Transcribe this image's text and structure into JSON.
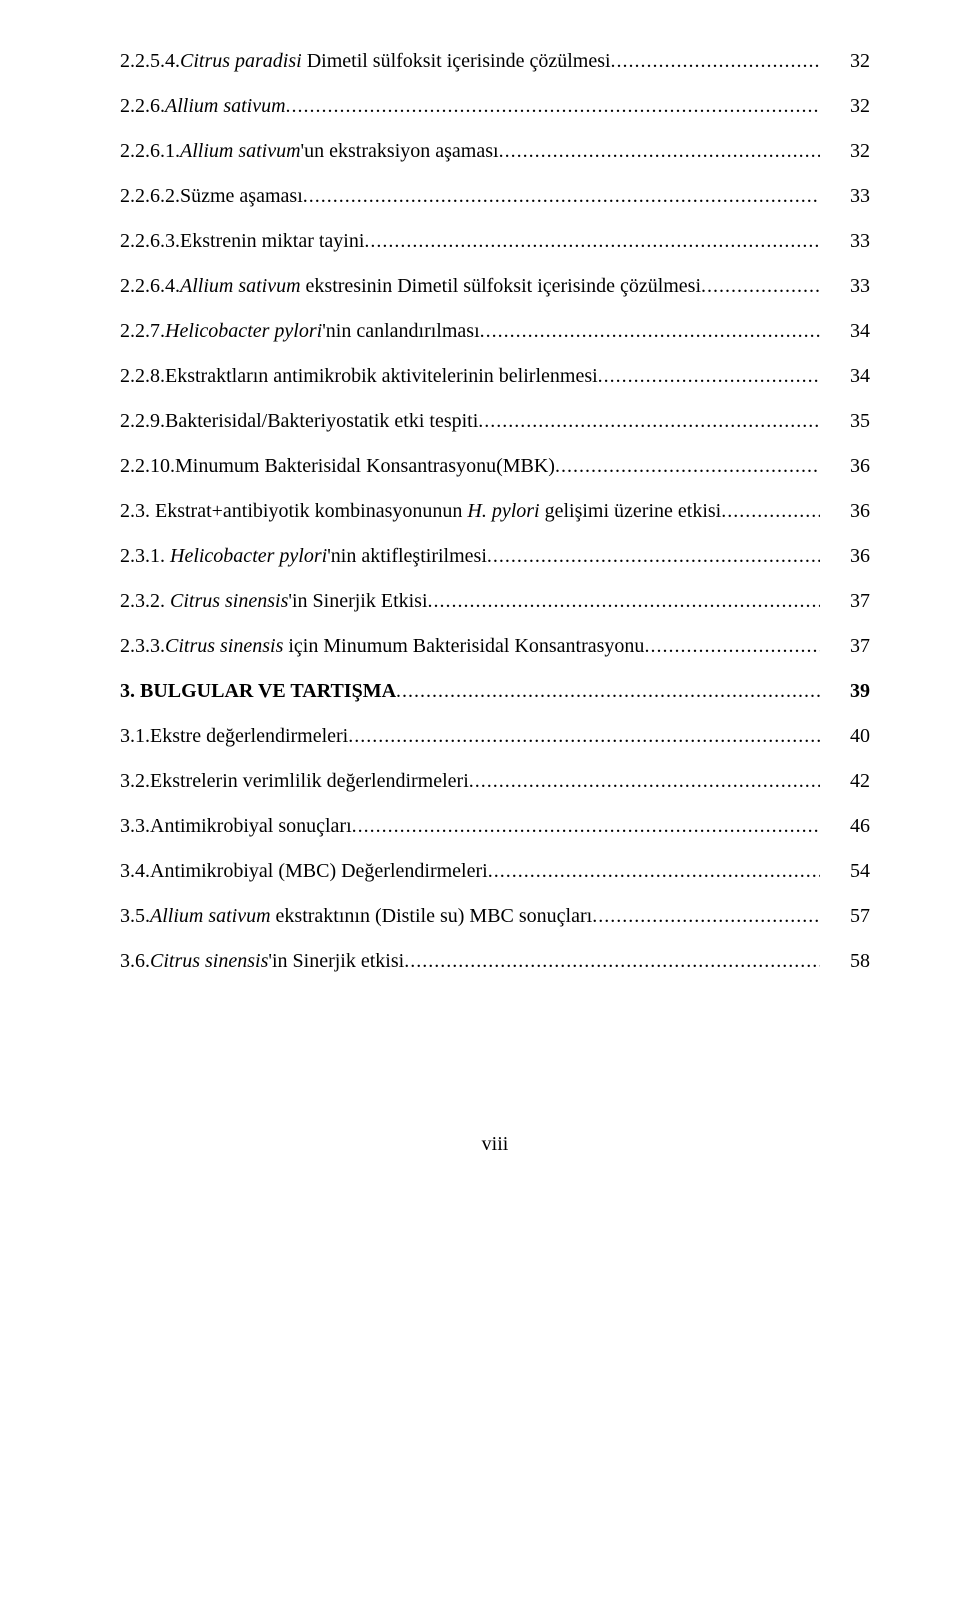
{
  "toc": [
    {
      "num": "2.2.5.4.",
      "pre_i": "Citrus paradisi",
      "post": " Dimetil sülfoksit içerisinde çözülmesi",
      "page": "32"
    },
    {
      "num": "2.2.6.",
      "pre_i": "Allium sativum",
      "post": "",
      "page": "32"
    },
    {
      "num": "2.2.6.1.",
      "pre_i": "Allium sativum",
      "post": "'un ekstraksiyon aşaması",
      "page": "32"
    },
    {
      "num": "2.2.6.2.",
      "pre_i": "",
      "post": "Süzme aşaması",
      "page": "33"
    },
    {
      "num": "2.2.6.3.",
      "pre_i": "",
      "post": "Ekstrenin miktar tayini",
      "page": "33"
    },
    {
      "num": "2.2.6.4.",
      "pre_i": "Allium sativum",
      "post": " ekstresinin Dimetil sülfoksit  içerisinde çözülmesi",
      "page": "33"
    },
    {
      "num": "2.2.7.",
      "pre_i": "Helicobacter pylori",
      "post": "'nin canlandırılması",
      "page": "34"
    },
    {
      "num": "2.2.8.",
      "pre_i": "",
      "post": "Ekstraktların antimikrobik aktivitelerinin belirlenmesi",
      "page": "34"
    },
    {
      "num": "2.2.9.",
      "pre_i": "",
      "post": "Bakterisidal/Bakteriyostatik etki tespiti",
      "page": "35"
    },
    {
      "num": "2.2.10.",
      "pre_i": "",
      "post": "Minumum Bakterisidal Konsantrasyonu(MBK)",
      "page": "36"
    },
    {
      "num": "2.3. ",
      "pre_i": "",
      "post": "Ekstrat+antibiyotik kombinasyonunun ",
      "post_i": "H. pylori",
      "post2": " gelişimi üzerine etkisi",
      "page": "36"
    },
    {
      "num": "2.3.1. ",
      "pre_i": "Helicobacter pylori",
      "post": "'nin aktifleştirilmesi",
      "page": "36"
    },
    {
      "num": "2.3.2. ",
      "pre_i": "Citrus sinensis",
      "post": "'in Sinerjik Etkisi",
      "page": "37"
    },
    {
      "num": "2.3.3.",
      "pre_i": "Citrus sinensis",
      "post": " için Minumum Bakterisidal Konsantrasyonu",
      "page": "37"
    },
    {
      "num": "3. ",
      "pre_i": "",
      "post": "BULGULAR VE TARTIŞMA",
      "bold": true,
      "page": "39"
    },
    {
      "num": "3.1.",
      "pre_i": "",
      "post": "Ekstre değerlendirmeleri",
      "page": "40"
    },
    {
      "num": "3.2.",
      "pre_i": "",
      "post": "Ekstrelerin verimlilik değerlendirmeleri",
      "page": "42"
    },
    {
      "num": "3.3.",
      "pre_i": "",
      "post": "Antimikrobiyal sonuçları",
      "page": "46"
    },
    {
      "num": "3.4.",
      "pre_i": "",
      "post": "Antimikrobiyal (MBC) Değerlendirmeleri",
      "page": "54"
    },
    {
      "num": "3.5.",
      "pre_i": "Allium sativum",
      "post": " ekstraktının (Distile su) MBC sonuçları",
      "page": "57"
    },
    {
      "num": "3.6.",
      "pre_i": "Citrus sinensis",
      "post": "'in Sinerjik etkisi",
      "page": "58"
    }
  ],
  "footer": "viii"
}
